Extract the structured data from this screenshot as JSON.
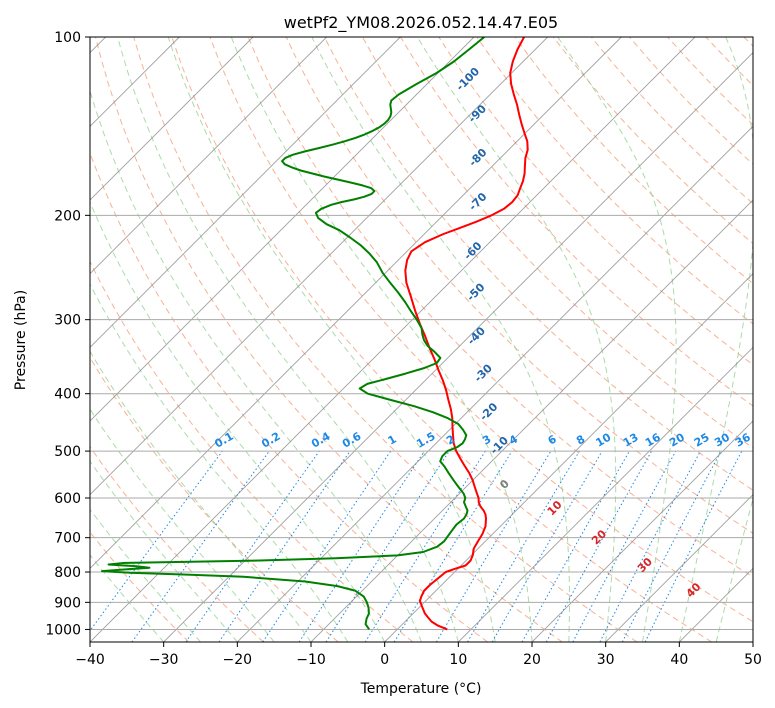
{
  "chart_data": {
    "type": "line",
    "title": "wetPf2_YM08.2026.052.14.47.E05",
    "xlabel": "Temperature (°C)",
    "ylabel": "Pressure (hPa)",
    "xlim": [
      -40,
      50
    ],
    "ylim": [
      1050,
      100
    ],
    "y_scale": "log",
    "grid": true,
    "x_ticks": [
      -40,
      -30,
      -20,
      -10,
      0,
      10,
      20,
      30,
      40,
      50
    ],
    "y_ticks": [
      100,
      200,
      300,
      400,
      500,
      600,
      700,
      800,
      900,
      1000
    ],
    "skew_degrees": 45,
    "colors": {
      "temperature": "#ff0000",
      "dewpoint": "#008000",
      "isotherm": "#888888",
      "dry_adiabat": "#f4a582",
      "moist_adiabat": "#8fcf8f",
      "mixing_ratio": "#1e88e5",
      "wetbulb_label": "#2166ac",
      "wbpt_label": "#d62728"
    },
    "series": [
      {
        "type": "temperature",
        "pressure": [
          1000,
          985,
          970,
          955,
          940,
          925,
          910,
          895,
          880,
          860,
          840,
          820,
          800,
          790,
          780,
          765,
          750,
          730,
          710,
          690,
          670,
          650,
          640,
          630,
          620,
          610,
          600,
          590,
          575,
          560,
          545,
          530,
          515,
          500,
          485,
          470,
          455,
          440,
          425,
          410,
          395,
          380,
          365,
          350,
          335,
          320,
          305,
          290,
          275,
          260,
          248,
          238,
          230,
          222,
          215,
          210,
          205,
          200,
          195,
          190,
          185,
          180,
          175,
          170,
          165,
          160,
          155,
          150,
          145,
          140,
          135,
          130,
          125,
          120,
          115,
          110,
          105,
          100
        ],
        "temperature": [
          6.8,
          5.0,
          3.6,
          2.6,
          1.6,
          0.8,
          0.0,
          -0.8,
          -1.2,
          -1.6,
          -1.6,
          -1.4,
          -1.2,
          -0.4,
          0.6,
          0.6,
          0.2,
          -0.6,
          -1.0,
          -1.4,
          -2.0,
          -3.0,
          -3.6,
          -4.4,
          -5.4,
          -6.2,
          -6.8,
          -7.6,
          -8.8,
          -10.0,
          -11.4,
          -13.0,
          -14.6,
          -16.2,
          -17.6,
          -18.8,
          -20.0,
          -21.2,
          -22.6,
          -24.2,
          -25.8,
          -27.6,
          -29.6,
          -31.6,
          -33.8,
          -36.0,
          -38.4,
          -40.8,
          -43.2,
          -45.8,
          -47.6,
          -48.8,
          -49.4,
          -48.8,
          -47.4,
          -46.0,
          -44.6,
          -43.4,
          -42.6,
          -42.4,
          -42.6,
          -43.2,
          -43.8,
          -44.6,
          -45.6,
          -46.6,
          -47.4,
          -48.6,
          -50.2,
          -51.8,
          -53.4,
          -55.0,
          -56.8,
          -58.6,
          -60.2,
          -61.4,
          -62.4,
          -63.2
        ]
      },
      {
        "type": "dewpoint",
        "pressure": [
          1000,
          980,
          960,
          940,
          920,
          900,
          880,
          860,
          845,
          830,
          815,
          808,
          802,
          797,
          792,
          787,
          782,
          777,
          772,
          765,
          758,
          750,
          740,
          725,
          710,
          695,
          680,
          665,
          650,
          640,
          630,
          620,
          610,
          600,
          590,
          575,
          560,
          545,
          530,
          520,
          510,
          500,
          492,
          485,
          478,
          470,
          460,
          450,
          440,
          430,
          420,
          410,
          400,
          392,
          385,
          378,
          370,
          362,
          355,
          348,
          340,
          332,
          325,
          318,
          310,
          300,
          290,
          280,
          270,
          260,
          250,
          240,
          232,
          225,
          218,
          212,
          207,
          202,
          198,
          195,
          192,
          190,
          188,
          186,
          184,
          182,
          180,
          178,
          176,
          174,
          172,
          170,
          168,
          166,
          164,
          162,
          160,
          158,
          156,
          154,
          152,
          150,
          148,
          146,
          144,
          142,
          140,
          138,
          136,
          134,
          132,
          130,
          128,
          125,
          120,
          115,
          110,
          105,
          100
        ],
        "dewpoint": [
          -3.8,
          -5.0,
          -5.6,
          -6.0,
          -6.8,
          -7.8,
          -9.0,
          -11.0,
          -14.0,
          -19.0,
          -28.0,
          -36.0,
          -44.0,
          -48.0,
          -45.0,
          -42.0,
          -44.0,
          -48.0,
          -46.0,
          -28.0,
          -18.0,
          -10.0,
          -7.0,
          -5.8,
          -5.6,
          -5.8,
          -6.0,
          -6.2,
          -6.0,
          -6.2,
          -6.6,
          -7.4,
          -8.2,
          -8.6,
          -9.4,
          -11.0,
          -12.6,
          -14.2,
          -15.8,
          -17.0,
          -17.4,
          -17.4,
          -16.6,
          -16.4,
          -16.6,
          -17.0,
          -18.2,
          -19.6,
          -21.8,
          -24.6,
          -28.0,
          -32.0,
          -36.0,
          -37.8,
          -37.4,
          -35.6,
          -33.6,
          -31.8,
          -30.8,
          -31.0,
          -32.6,
          -34.4,
          -35.6,
          -36.6,
          -37.6,
          -39.4,
          -41.4,
          -43.4,
          -45.6,
          -48.0,
          -50.4,
          -52.6,
          -54.8,
          -57.0,
          -59.6,
          -62.0,
          -64.6,
          -66.6,
          -67.6,
          -67.4,
          -66.6,
          -65.6,
          -64.2,
          -63.2,
          -62.6,
          -62.6,
          -63.4,
          -65.0,
          -67.0,
          -69.2,
          -71.4,
          -73.4,
          -75.4,
          -77.0,
          -78.4,
          -79.2,
          -79.2,
          -78.6,
          -77.4,
          -76.0,
          -74.6,
          -73.4,
          -72.4,
          -71.6,
          -71.0,
          -70.6,
          -70.4,
          -70.4,
          -70.6,
          -71.0,
          -71.6,
          -72.2,
          -72.6,
          -72.4,
          -71.4,
          -70.2,
          -69.4,
          -69.0,
          -68.6
        ]
      }
    ],
    "wetbulb_labels": [
      "-100",
      "-90",
      "-80",
      "-70",
      "-60",
      "-50",
      "-40",
      "-30",
      "-20",
      "-10"
    ],
    "mixing_ratio_labels": [
      "0.1",
      "0.2",
      "0.4",
      "0.6",
      "1",
      "1.5",
      "2",
      "3",
      "4",
      "6",
      "8",
      "10",
      "13",
      "16",
      "20",
      "25",
      "30",
      "36"
    ],
    "wbpt_labels": [
      "0",
      "10",
      "20",
      "30",
      "40"
    ]
  }
}
